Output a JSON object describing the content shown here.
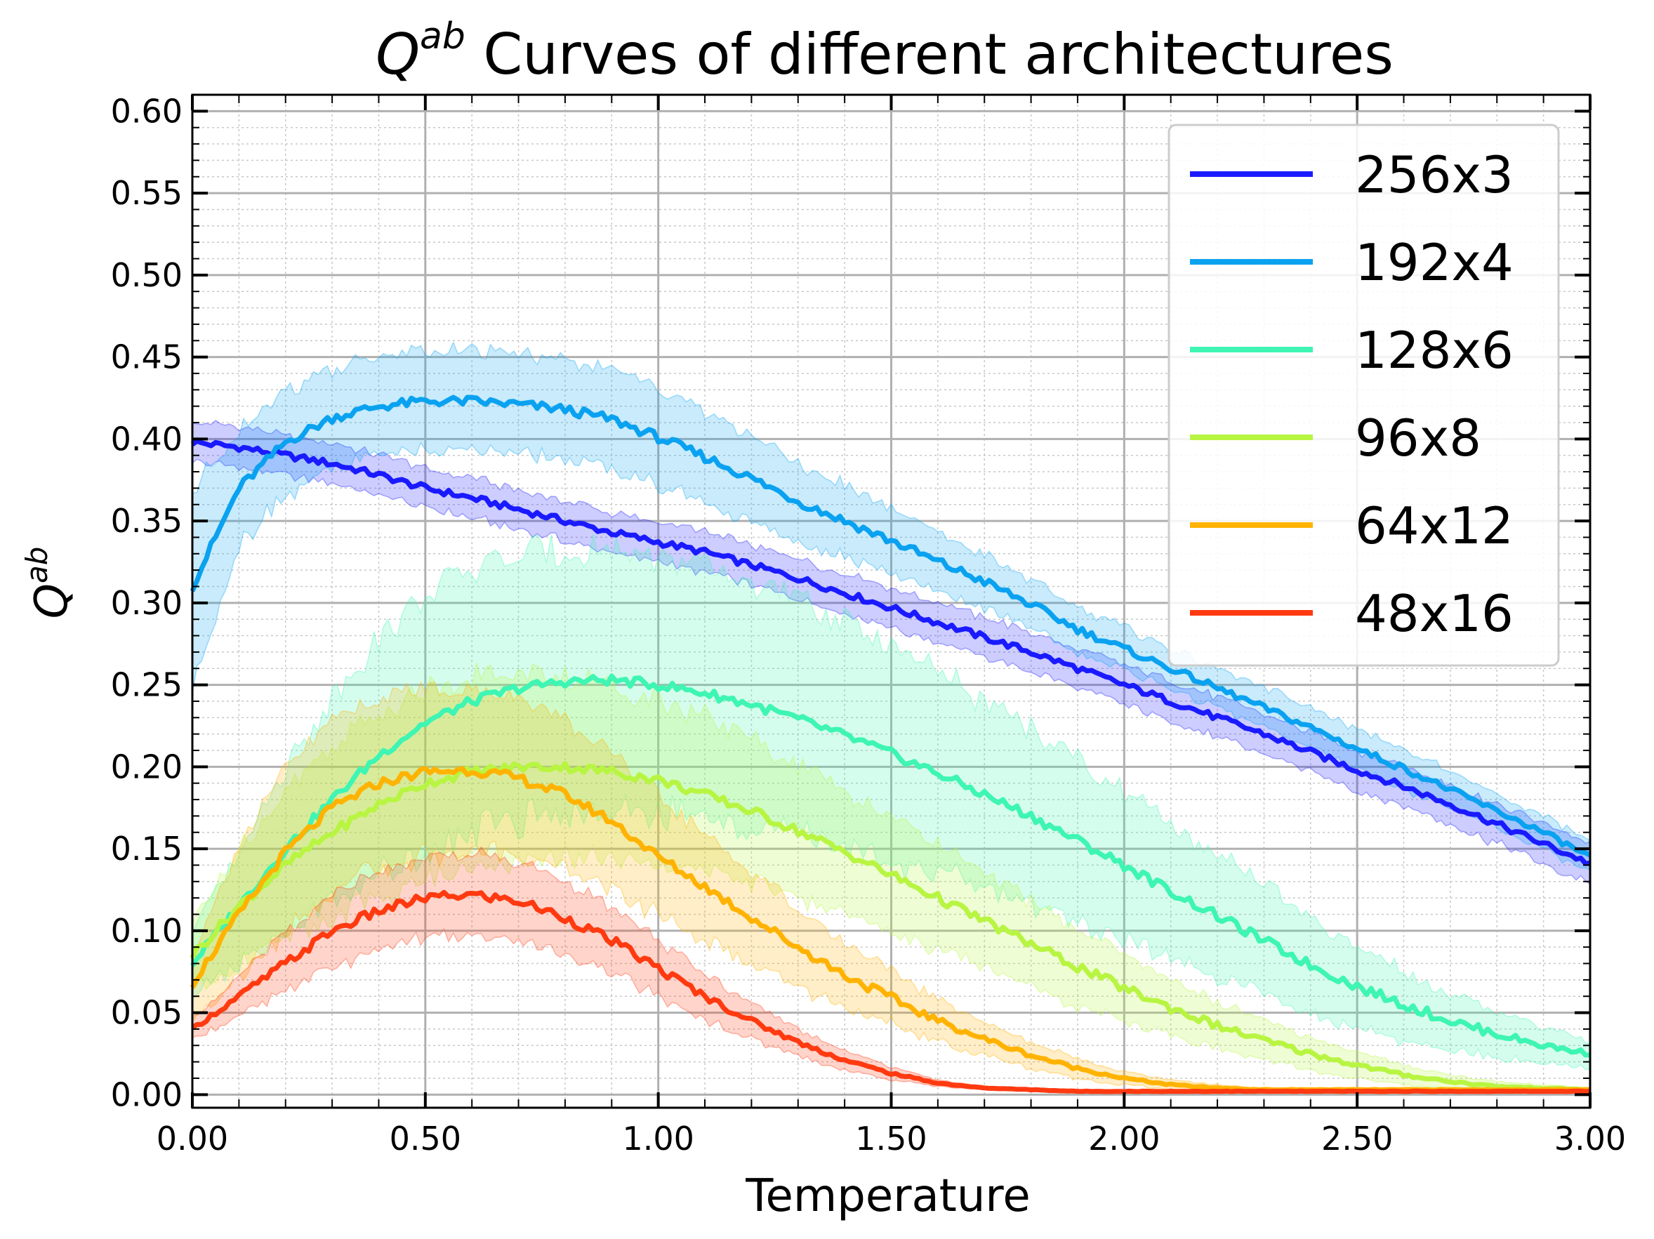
{
  "chart_data": {
    "type": "line",
    "title": "Q^ab Curves of different architectures",
    "title_parts": {
      "symbol": "Q",
      "superscript": "ab",
      "rest": " Curves of different architectures"
    },
    "xlabel": "Temperature",
    "ylabel": "Q^ab",
    "ylabel_parts": {
      "symbol": "Q",
      "superscript": "ab"
    },
    "xlim": [
      0,
      3
    ],
    "ylim": [
      -0.008,
      0.61
    ],
    "xticks": [
      0,
      0.5,
      1,
      1.5,
      2,
      2.5,
      3
    ],
    "xtick_labels": [
      "0.00",
      "0.50",
      "1.00",
      "1.50",
      "2.00",
      "2.50",
      "3.00"
    ],
    "yticks": [
      0,
      0.05,
      0.1,
      0.15,
      0.2,
      0.25,
      0.3,
      0.35,
      0.4,
      0.45,
      0.5,
      0.55,
      0.6
    ],
    "ytick_labels": [
      "0.00",
      "0.05",
      "0.10",
      "0.15",
      "0.20",
      "0.25",
      "0.30",
      "0.35",
      "0.40",
      "0.45",
      "0.50",
      "0.55",
      "0.60"
    ],
    "grid": true,
    "legend_position": "upper-right",
    "x": [
      0,
      0.1,
      0.2,
      0.3,
      0.4,
      0.5,
      0.6,
      0.7,
      0.8,
      0.9,
      1.0,
      1.1,
      1.2,
      1.3,
      1.4,
      1.5,
      1.6,
      1.7,
      1.8,
      1.9,
      2.0,
      2.1,
      2.2,
      2.3,
      2.4,
      2.5,
      2.6,
      2.7,
      2.8,
      2.9,
      3.0
    ],
    "series": [
      {
        "name": "256x3",
        "color": "#1a1aff",
        "values": [
          0.398,
          0.395,
          0.39,
          0.385,
          0.378,
          0.37,
          0.364,
          0.357,
          0.35,
          0.343,
          0.337,
          0.331,
          0.323,
          0.315,
          0.306,
          0.297,
          0.288,
          0.279,
          0.27,
          0.26,
          0.25,
          0.24,
          0.23,
          0.22,
          0.209,
          0.198,
          0.188,
          0.177,
          0.165,
          0.153,
          0.141
        ],
        "band": [
          0.012,
          0.012,
          0.012,
          0.012,
          0.012,
          0.012,
          0.012,
          0.012,
          0.012,
          0.012,
          0.012,
          0.012,
          0.012,
          0.012,
          0.012,
          0.012,
          0.012,
          0.012,
          0.012,
          0.012,
          0.012,
          0.012,
          0.012,
          0.012,
          0.012,
          0.012,
          0.012,
          0.012,
          0.012,
          0.012,
          0.012
        ]
      },
      {
        "name": "192x4",
        "color": "#0aa2f0",
        "values": [
          0.31,
          0.37,
          0.398,
          0.413,
          0.42,
          0.423,
          0.423,
          0.421,
          0.418,
          0.412,
          0.401,
          0.389,
          0.376,
          0.362,
          0.35,
          0.338,
          0.325,
          0.313,
          0.299,
          0.284,
          0.272,
          0.26,
          0.248,
          0.236,
          0.224,
          0.211,
          0.199,
          0.186,
          0.173,
          0.16,
          0.145
        ],
        "band": [
          0.06,
          0.035,
          0.032,
          0.03,
          0.03,
          0.03,
          0.03,
          0.03,
          0.03,
          0.03,
          0.03,
          0.028,
          0.026,
          0.024,
          0.022,
          0.02,
          0.018,
          0.016,
          0.015,
          0.014,
          0.013,
          0.012,
          0.012,
          0.012,
          0.012,
          0.012,
          0.012,
          0.011,
          0.01,
          0.01,
          0.01
        ]
      },
      {
        "name": "128x6",
        "color": "#3ef5b3",
        "values": [
          0.08,
          0.115,
          0.15,
          0.18,
          0.207,
          0.227,
          0.24,
          0.248,
          0.252,
          0.253,
          0.25,
          0.245,
          0.238,
          0.229,
          0.219,
          0.208,
          0.196,
          0.183,
          0.17,
          0.155,
          0.14,
          0.124,
          0.109,
          0.094,
          0.079,
          0.066,
          0.055,
          0.045,
          0.037,
          0.03,
          0.025
        ],
        "band": [
          0.02,
          0.035,
          0.05,
          0.062,
          0.072,
          0.078,
          0.08,
          0.08,
          0.08,
          0.08,
          0.078,
          0.076,
          0.074,
          0.071,
          0.068,
          0.065,
          0.061,
          0.057,
          0.053,
          0.049,
          0.045,
          0.041,
          0.037,
          0.033,
          0.029,
          0.025,
          0.021,
          0.017,
          0.014,
          0.011,
          0.008
        ]
      },
      {
        "name": "96x8",
        "color": "#b8f542",
        "values": [
          0.085,
          0.115,
          0.14,
          0.16,
          0.177,
          0.19,
          0.197,
          0.2,
          0.2,
          0.197,
          0.192,
          0.183,
          0.173,
          0.161,
          0.148,
          0.134,
          0.12,
          0.106,
          0.092,
          0.078,
          0.065,
          0.053,
          0.042,
          0.033,
          0.025,
          0.018,
          0.012,
          0.008,
          0.005,
          0.004,
          0.003
        ],
        "band": [
          0.02,
          0.035,
          0.045,
          0.052,
          0.056,
          0.058,
          0.058,
          0.057,
          0.055,
          0.053,
          0.05,
          0.047,
          0.044,
          0.041,
          0.038,
          0.035,
          0.032,
          0.029,
          0.026,
          0.023,
          0.02,
          0.017,
          0.014,
          0.012,
          0.01,
          0.008,
          0.006,
          0.004,
          0.003,
          0.002,
          0.001
        ]
      },
      {
        "name": "64x12",
        "color": "#ffb300",
        "values": [
          0.068,
          0.11,
          0.148,
          0.175,
          0.19,
          0.197,
          0.198,
          0.193,
          0.183,
          0.167,
          0.145,
          0.127,
          0.108,
          0.09,
          0.073,
          0.059,
          0.045,
          0.034,
          0.024,
          0.016,
          0.01,
          0.006,
          0.004,
          0.003,
          0.003,
          0.003,
          0.003,
          0.003,
          0.003,
          0.003,
          0.003
        ],
        "band": [
          0.02,
          0.04,
          0.05,
          0.052,
          0.052,
          0.052,
          0.05,
          0.048,
          0.045,
          0.041,
          0.036,
          0.032,
          0.028,
          0.024,
          0.02,
          0.016,
          0.013,
          0.01,
          0.008,
          0.006,
          0.004,
          0.003,
          0.002,
          0.001,
          0.001,
          0.001,
          0.001,
          0.001,
          0.001,
          0.001,
          0.001
        ]
      },
      {
        "name": "48x16",
        "color": "#ff3a10",
        "values": [
          0.04,
          0.06,
          0.08,
          0.1,
          0.112,
          0.12,
          0.122,
          0.118,
          0.108,
          0.094,
          0.077,
          0.06,
          0.045,
          0.032,
          0.021,
          0.013,
          0.007,
          0.004,
          0.003,
          0.002,
          0.002,
          0.002,
          0.002,
          0.002,
          0.002,
          0.002,
          0.002,
          0.002,
          0.002,
          0.002,
          0.002
        ],
        "band": [
          0.006,
          0.012,
          0.018,
          0.022,
          0.024,
          0.025,
          0.025,
          0.024,
          0.022,
          0.02,
          0.017,
          0.014,
          0.011,
          0.008,
          0.006,
          0.004,
          0.002,
          0.001,
          0.001,
          0.001,
          0.001,
          0.001,
          0.001,
          0.001,
          0.001,
          0.001,
          0.001,
          0.001,
          0.001,
          0.001,
          0.001
        ]
      }
    ]
  }
}
